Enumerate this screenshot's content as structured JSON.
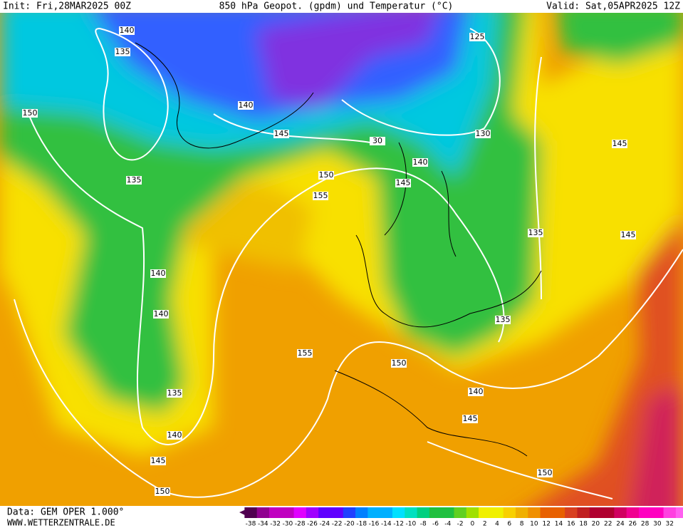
{
  "header": {
    "init": "Init: Fri,28MAR2025 00Z",
    "title": "850 hPa Geopot. (gpdm) und Temperatur (°C)",
    "valid": "Valid: Sat,05APR2025 12Z"
  },
  "footer": {
    "data": "Data: GEM OPER 1.000°",
    "site": "WWW.WETTERZENTRALE.DE"
  },
  "contour_labels": [
    "140",
    "135",
    "150",
    "140",
    "145",
    "135",
    "125",
    "130",
    "30",
    "140",
    "145",
    "150",
    "155",
    "145",
    "135",
    "145",
    "140",
    "140",
    "135",
    "155",
    "150",
    "135",
    "140",
    "140",
    "145",
    "145",
    "150",
    "150"
  ],
  "legend": {
    "ticks": [
      -38,
      -34,
      -32,
      -30,
      -28,
      -26,
      -24,
      -22,
      -20,
      -18,
      -16,
      -14,
      -12,
      -10,
      -8,
      -6,
      -4,
      -2,
      0,
      2,
      4,
      6,
      8,
      10,
      12,
      14,
      16,
      18,
      20,
      22,
      24,
      26,
      28,
      30,
      32
    ]
  }
}
